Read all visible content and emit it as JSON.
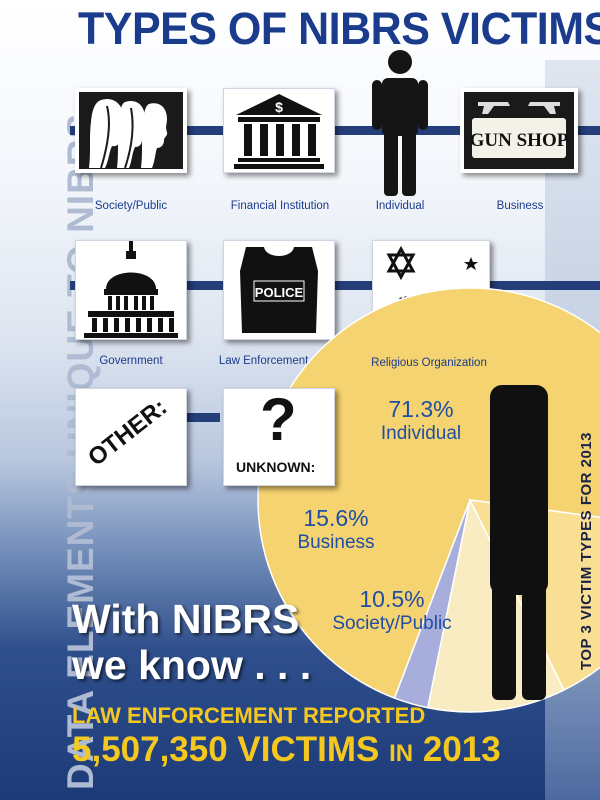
{
  "title": "TYPES OF NIBRS VICTIMS:",
  "side_title": "DATA ELEMENTS UNIQUE TO NIBRS",
  "victim_types": [
    {
      "label": "Society/Public",
      "icon": "silhouette-faces-icon"
    },
    {
      "label": "Financial Institution",
      "icon": "bank-icon"
    },
    {
      "label": "Individual",
      "icon": "person-icon"
    },
    {
      "label": "Business",
      "icon": "gun-shop-sign-icon",
      "sign_text": "GUN SHOP"
    },
    {
      "label": "Government",
      "icon": "capitol-dome-icon"
    },
    {
      "label": "Law Enforcement Officer",
      "icon": "police-vest-icon",
      "vest_text": "POLICE"
    },
    {
      "label": "Religious Organization",
      "icon": "religious-symbols-icon"
    },
    {
      "label": "OTHER:",
      "icon": "other-tile"
    },
    {
      "label": "UNKNOWN:",
      "icon": "question-mark-icon",
      "glyph": "?"
    }
  ],
  "chart_data": {
    "type": "pie",
    "title": "TOP 3 VICTIM TYPES FOR 2013",
    "slices": [
      {
        "label": "Individual",
        "value": 71.3,
        "value_text": "71.3%",
        "color": "#f5d370"
      },
      {
        "label": "Business",
        "value": 15.6,
        "value_text": "15.6%",
        "color": "#f8df93"
      },
      {
        "label": "Society/Public",
        "value": 10.5,
        "value_text": "10.5%",
        "color": "#faecc2"
      },
      {
        "label": "",
        "value": 2.6,
        "value_text": "",
        "color": "#a7aedb"
      }
    ]
  },
  "footer": {
    "line1": "With NIBRS",
    "line2": "we know . . .",
    "reported_line": "LAW ENFORCEMENT REPORTED",
    "count_text": "5,507,350 VICTIMS",
    "in_text": "IN",
    "year_text": "2013"
  },
  "colors": {
    "title": "#1b3c8c",
    "accent_yellow": "#f4c81e",
    "rail": "#233e78"
  }
}
